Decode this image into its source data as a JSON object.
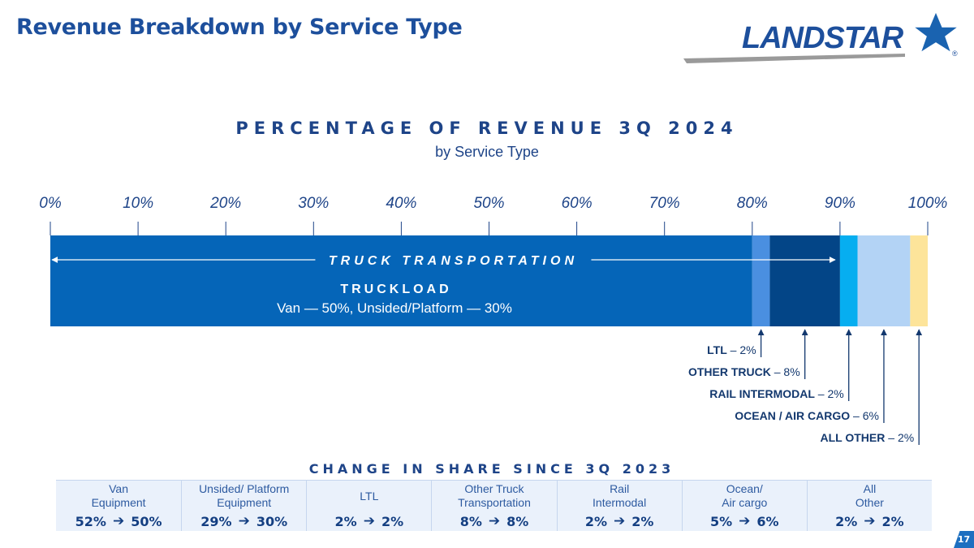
{
  "slide": {
    "title": "Revenue Breakdown by Service Type",
    "page_number": "17",
    "logo_text": "LANDSTAR",
    "logo_mark": "®"
  },
  "chart_data": {
    "type": "bar",
    "title": "PERCENTAGE OF REVENUE 3Q 2024",
    "subtitle": "by Service Type",
    "orientation": "horizontal-stacked",
    "xlim": [
      0,
      100
    ],
    "ticks": [
      "0%",
      "10%",
      "20%",
      "30%",
      "40%",
      "50%",
      "60%",
      "70%",
      "80%",
      "90%",
      "100%"
    ],
    "segments": [
      {
        "key": "truckload",
        "value": 80,
        "color": "#0565b8"
      },
      {
        "key": "ltl",
        "value": 2,
        "color": "#4a8fe0"
      },
      {
        "key": "other_truck",
        "value": 8,
        "color": "#034587"
      },
      {
        "key": "rail_intermodal",
        "value": 2,
        "color": "#06aef0"
      },
      {
        "key": "ocean_air",
        "value": 6,
        "color": "#b3d3f5"
      },
      {
        "key": "all_other",
        "value": 2,
        "color": "#fde49a"
      }
    ],
    "span_label": "TRUCK TRANSPORTATION",
    "span_range": [
      0,
      90
    ],
    "truckload_label": "TRUCKLOAD",
    "truckload_detail": "Van — 50%, Unsided/Platform — 30%",
    "callouts": [
      {
        "key": "ltl",
        "name": "LTL",
        "value": "– 2%"
      },
      {
        "key": "other_truck",
        "name": "OTHER TRUCK",
        "value": "– 8%"
      },
      {
        "key": "rail_intermodal",
        "name": "RAIL INTERMODAL",
        "value": "– 2%"
      },
      {
        "key": "ocean_air",
        "name": "OCEAN / AIR CARGO",
        "value": "– 6%"
      },
      {
        "key": "all_other",
        "name": "ALL OTHER",
        "value": "– 2%"
      }
    ]
  },
  "change_table": {
    "title": "CHANGE IN SHARE SINCE 3Q 2023",
    "arrow": "➔",
    "columns": [
      {
        "label": "Van\nEquipment",
        "from": "52%",
        "to": "50%"
      },
      {
        "label": "Unsided/ Platform\nEquipment",
        "from": "29%",
        "to": "30%"
      },
      {
        "label": "LTL",
        "from": "2%",
        "to": "2%"
      },
      {
        "label": "Other Truck\nTransportation",
        "from": "8%",
        "to": "8%"
      },
      {
        "label": "Rail\nIntermodal",
        "from": "2%",
        "to": "2%"
      },
      {
        "label": "Ocean/\nAir cargo",
        "from": "5%",
        "to": "6%"
      },
      {
        "label": "All\nOther",
        "from": "2%",
        "to": "2%"
      }
    ]
  },
  "colors": {
    "title_blue": "#1d4f9c",
    "heading_navy": "#1e4488",
    "callout_navy": "#13386e",
    "table_bg": "#eaf1fb"
  }
}
